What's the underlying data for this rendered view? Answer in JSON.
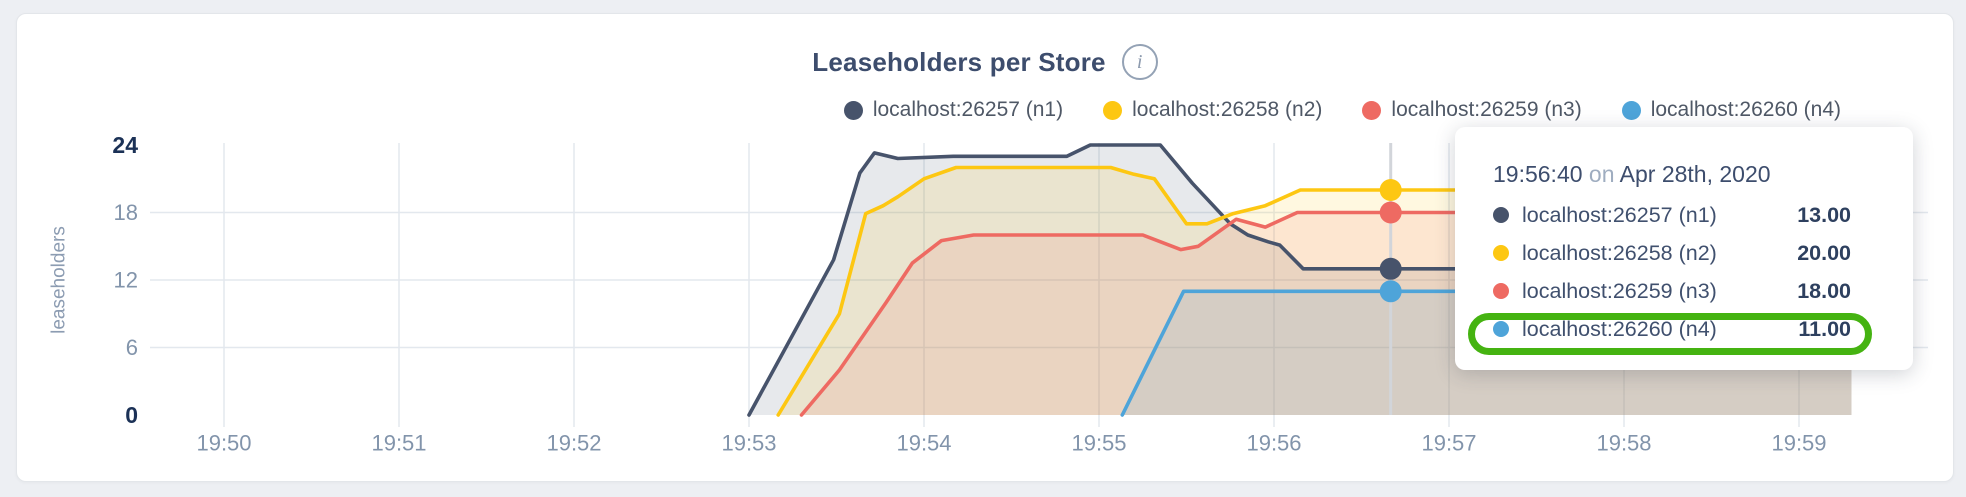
{
  "page": {
    "background": "#edeff3"
  },
  "header": {
    "title": "Leaseholders per Store",
    "info_icon_glyph": "i"
  },
  "legend": {
    "items": [
      {
        "label": "localhost:26257 (n1)",
        "color": "#47536b"
      },
      {
        "label": "localhost:26258 (n2)",
        "color": "#fdc712"
      },
      {
        "label": "localhost:26259 (n3)",
        "color": "#ee6a62"
      },
      {
        "label": "localhost:26260 (n4)",
        "color": "#4ea4d9"
      }
    ]
  },
  "chart_data": {
    "type": "area",
    "title": "Leaseholders per Store",
    "ylabel": "leaseholders",
    "ylim": [
      0,
      24
    ],
    "y_ticks": [
      0,
      6,
      12,
      18,
      24
    ],
    "x_ticks": [
      "19:50",
      "19:51",
      "19:52",
      "19:53",
      "19:54",
      "19:55",
      "19:56",
      "19:57",
      "19:58",
      "19:59"
    ],
    "x_unit": "seconds after 19:50:00",
    "grid": true,
    "legend_position": "top-right",
    "series": [
      {
        "name": "localhost:26257 (n1)",
        "color": "#47536b",
        "points": [
          [
            180,
            0
          ],
          [
            209,
            13.8
          ],
          [
            218,
            21.5
          ],
          [
            223,
            23.3
          ],
          [
            231,
            22.8
          ],
          [
            250,
            23
          ],
          [
            289,
            23
          ],
          [
            297,
            24
          ],
          [
            321,
            24
          ],
          [
            332,
            20.6
          ],
          [
            345,
            17
          ],
          [
            351,
            16
          ],
          [
            358,
            15.4
          ],
          [
            362,
            15.1
          ],
          [
            370,
            13
          ],
          [
            558,
            13
          ]
        ]
      },
      {
        "name": "localhost:26258 (n2)",
        "color": "#fdc712",
        "points": [
          [
            190,
            0
          ],
          [
            211,
            9
          ],
          [
            220,
            17.9
          ],
          [
            226,
            18.6
          ],
          [
            231,
            19.4
          ],
          [
            240,
            21
          ],
          [
            251,
            22
          ],
          [
            304,
            22
          ],
          [
            312,
            21.4
          ],
          [
            319,
            21
          ],
          [
            330,
            17
          ],
          [
            337,
            17
          ],
          [
            346,
            17.9
          ],
          [
            357,
            18.6
          ],
          [
            369,
            20
          ],
          [
            558,
            20
          ]
        ]
      },
      {
        "name": "localhost:26259 (n3)",
        "color": "#ee6a62",
        "points": [
          [
            198,
            0
          ],
          [
            211,
            4
          ],
          [
            227,
            10
          ],
          [
            236,
            13.5
          ],
          [
            246,
            15.5
          ],
          [
            257,
            16
          ],
          [
            315,
            16
          ],
          [
            328,
            14.7
          ],
          [
            334,
            15
          ],
          [
            347,
            17.4
          ],
          [
            357,
            16.7
          ],
          [
            368,
            18
          ],
          [
            558,
            18
          ]
        ]
      },
      {
        "name": "localhost:26260 (n4)",
        "color": "#4ea4d9",
        "points": [
          [
            308,
            0
          ],
          [
            329,
            11
          ],
          [
            558,
            11
          ]
        ]
      }
    ],
    "hover": {
      "t": 400,
      "time_label": "19:56:40",
      "values": [
        13,
        20,
        18,
        11
      ]
    }
  },
  "tooltip": {
    "time": "19:56:40",
    "conjunction": "on",
    "date": "Apr 28th, 2020",
    "rows": [
      {
        "label": "localhost:26257 (n1)",
        "value": "13.00",
        "color": "#47536b"
      },
      {
        "label": "localhost:26258 (n2)",
        "value": "20.00",
        "color": "#fdc712"
      },
      {
        "label": "localhost:26259 (n3)",
        "value": "18.00",
        "color": "#ee6a62"
      },
      {
        "label": "localhost:26260 (n4)",
        "value": "11.00",
        "color": "#4ea4d9"
      }
    ],
    "highlight_row_index": 3,
    "highlight_color": "#45b311"
  }
}
